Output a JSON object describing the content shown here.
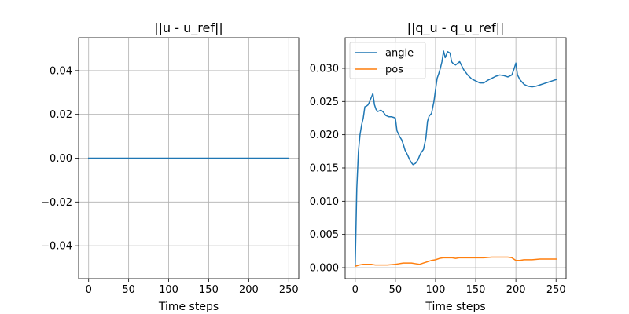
{
  "chart_data": [
    {
      "type": "line",
      "title": "||u - u_ref||",
      "xlabel": "Time steps",
      "ylabel": "",
      "xlim": [
        -12.5,
        262.5
      ],
      "ylim": [
        -0.055,
        0.055
      ],
      "xticks": [
        0,
        50,
        100,
        150,
        200,
        250
      ],
      "yticks": [
        -0.04,
        -0.02,
        0.0,
        0.02,
        0.04
      ],
      "ytick_labels": [
        "−0.04",
        "−0.02",
        "0.00",
        "0.02",
        "0.04"
      ],
      "grid": true,
      "series": [
        {
          "color": "#1f77b4",
          "x": [
            0,
            250
          ],
          "y": [
            0.0,
            0.0
          ]
        }
      ]
    },
    {
      "type": "line",
      "title": "||q_u - q_u_ref||",
      "xlabel": "Time steps",
      "ylabel": "",
      "xlim": [
        -12.5,
        262.5
      ],
      "ylim": [
        -0.00165,
        0.0346
      ],
      "xticks": [
        0,
        50,
        100,
        150,
        200,
        250
      ],
      "yticks": [
        0.0,
        0.005,
        0.01,
        0.015,
        0.02,
        0.025,
        0.03
      ],
      "ytick_labels": [
        "0.000",
        "0.005",
        "0.010",
        "0.015",
        "0.020",
        "0.025",
        "0.030"
      ],
      "grid": true,
      "legend": "top-left",
      "series": [
        {
          "name": "angle",
          "color": "#1f77b4",
          "x": [
            0,
            2,
            4,
            6,
            8,
            10,
            12,
            14,
            16,
            18,
            20,
            22,
            24,
            26,
            28,
            30,
            32,
            35,
            38,
            40,
            42,
            45,
            48,
            50,
            52,
            55,
            58,
            60,
            62,
            65,
            68,
            70,
            72,
            75,
            78,
            80,
            82,
            85,
            88,
            90,
            92,
            95,
            98,
            100,
            102,
            104,
            106,
            108,
            110,
            112,
            115,
            118,
            120,
            122,
            125,
            130,
            135,
            140,
            145,
            150,
            155,
            160,
            165,
            170,
            175,
            180,
            185,
            190,
            195,
            198,
            200,
            202,
            205,
            210,
            215,
            220,
            225,
            230,
            235,
            240,
            245,
            250
          ],
          "y": [
            0.0003,
            0.012,
            0.0175,
            0.02,
            0.0215,
            0.0225,
            0.0242,
            0.0243,
            0.0245,
            0.025,
            0.0256,
            0.0262,
            0.0245,
            0.0238,
            0.0235,
            0.0236,
            0.0237,
            0.0234,
            0.0229,
            0.0228,
            0.0227,
            0.0227,
            0.0226,
            0.0225,
            0.0206,
            0.0198,
            0.0192,
            0.0185,
            0.0177,
            0.017,
            0.0162,
            0.0158,
            0.0155,
            0.0157,
            0.0162,
            0.0168,
            0.0173,
            0.0178,
            0.0195,
            0.022,
            0.0228,
            0.0232,
            0.025,
            0.0268,
            0.0285,
            0.0292,
            0.03,
            0.031,
            0.0326,
            0.0316,
            0.0325,
            0.0323,
            0.031,
            0.0307,
            0.0305,
            0.031,
            0.0298,
            0.029,
            0.0284,
            0.0281,
            0.0278,
            0.0278,
            0.0282,
            0.0285,
            0.0288,
            0.029,
            0.0289,
            0.0287,
            0.029,
            0.03,
            0.0308,
            0.029,
            0.0283,
            0.0276,
            0.0273,
            0.0272,
            0.0273,
            0.0275,
            0.0277,
            0.0279,
            0.0281,
            0.0283
          ]
        },
        {
          "name": "pos",
          "color": "#ff7f0e",
          "x": [
            0,
            5,
            10,
            15,
            20,
            25,
            30,
            40,
            50,
            55,
            60,
            65,
            70,
            75,
            80,
            85,
            90,
            95,
            100,
            105,
            110,
            115,
            120,
            125,
            130,
            140,
            150,
            160,
            170,
            180,
            190,
            195,
            200,
            205,
            210,
            220,
            230,
            240,
            250
          ],
          "y": [
            0.0002,
            0.0004,
            0.0005,
            0.0005,
            0.0005,
            0.0004,
            0.0004,
            0.0004,
            0.0005,
            0.0006,
            0.0007,
            0.0007,
            0.0007,
            0.0006,
            0.0005,
            0.0007,
            0.0009,
            0.0011,
            0.0012,
            0.0014,
            0.0015,
            0.0015,
            0.0015,
            0.0014,
            0.0015,
            0.0015,
            0.0015,
            0.0015,
            0.0016,
            0.0016,
            0.0016,
            0.0015,
            0.0011,
            0.0011,
            0.0012,
            0.0012,
            0.0013,
            0.0013,
            0.0013
          ]
        }
      ]
    }
  ]
}
